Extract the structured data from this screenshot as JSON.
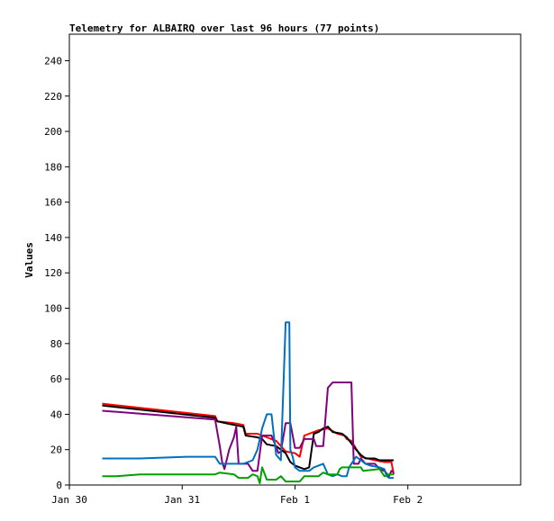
{
  "chart_data": {
    "type": "line",
    "title": "Telemetry for ALBAIRQ over last 96 hours (77 points)",
    "ylabel": "Values",
    "xlabel": "",
    "ylim": [
      0,
      255
    ],
    "xlim": [
      0,
      96
    ],
    "y_ticks": [
      0,
      20,
      40,
      60,
      80,
      100,
      120,
      140,
      160,
      180,
      200,
      220,
      240
    ],
    "x_ticks": [
      {
        "x": 0,
        "label": "Jan 30"
      },
      {
        "x": 24,
        "label": "Jan 31"
      },
      {
        "x": 48,
        "label": "Feb 1"
      },
      {
        "x": 72,
        "label": "Feb 2"
      }
    ],
    "grid": false,
    "legend": "none",
    "series": [
      {
        "color": "#ff0000",
        "points": [
          [
            7,
            46
          ],
          [
            31,
            39
          ],
          [
            31.5,
            36
          ],
          [
            35,
            35
          ],
          [
            37,
            34
          ],
          [
            37.5,
            29
          ],
          [
            40,
            29
          ],
          [
            42,
            27
          ],
          [
            44,
            25
          ],
          [
            46,
            19
          ],
          [
            48,
            18
          ],
          [
            49,
            16
          ],
          [
            50,
            28
          ],
          [
            52,
            30
          ],
          [
            53,
            31
          ],
          [
            55,
            32
          ],
          [
            57,
            29
          ],
          [
            58.5,
            28
          ],
          [
            59,
            26
          ],
          [
            60,
            25
          ],
          [
            62,
            16
          ],
          [
            65,
            14
          ],
          [
            67,
            13
          ],
          [
            68.5,
            13
          ],
          [
            69,
            6
          ]
        ]
      },
      {
        "color": "#000000",
        "points": [
          [
            7,
            45
          ],
          [
            31,
            38
          ],
          [
            31.5,
            36
          ],
          [
            35,
            34
          ],
          [
            37,
            33
          ],
          [
            37.5,
            28
          ],
          [
            40,
            27
          ],
          [
            41,
            26
          ],
          [
            42,
            23
          ],
          [
            44,
            22
          ],
          [
            45,
            20
          ],
          [
            46,
            18
          ],
          [
            47,
            13
          ],
          [
            48,
            11
          ],
          [
            49,
            10
          ],
          [
            50,
            9
          ],
          [
            51,
            10
          ],
          [
            52,
            29
          ],
          [
            53,
            30
          ],
          [
            54,
            32
          ],
          [
            55,
            33
          ],
          [
            56,
            30
          ],
          [
            58,
            29
          ],
          [
            59,
            27
          ],
          [
            61,
            20
          ],
          [
            62,
            17
          ],
          [
            63,
            15
          ],
          [
            65,
            15
          ],
          [
            66,
            14
          ],
          [
            68,
            14
          ],
          [
            69,
            14
          ]
        ]
      },
      {
        "color": "#800080",
        "points": [
          [
            7,
            42
          ],
          [
            31,
            37
          ],
          [
            32,
            22
          ],
          [
            32.5,
            13
          ],
          [
            33,
            9
          ],
          [
            34,
            20
          ],
          [
            35,
            27
          ],
          [
            35.5,
            33
          ],
          [
            36,
            12
          ],
          [
            38,
            12
          ],
          [
            39,
            8
          ],
          [
            40,
            8
          ],
          [
            41,
            28
          ],
          [
            43,
            28
          ],
          [
            44.5,
            18
          ],
          [
            45,
            19
          ],
          [
            46,
            35
          ],
          [
            47,
            35
          ],
          [
            48,
            21
          ],
          [
            49,
            21
          ],
          [
            50,
            26
          ],
          [
            52,
            26
          ],
          [
            52.5,
            22
          ],
          [
            54,
            22
          ],
          [
            55,
            55
          ],
          [
            56,
            58
          ],
          [
            60,
            58
          ],
          [
            60.5,
            12
          ],
          [
            61.5,
            12
          ],
          [
            62,
            15
          ],
          [
            63,
            12
          ],
          [
            65,
            12
          ],
          [
            66,
            9
          ],
          [
            67,
            8
          ],
          [
            68,
            5
          ],
          [
            68.5,
            8
          ],
          [
            69,
            7
          ]
        ]
      },
      {
        "color": "#0070c0",
        "points": [
          [
            7,
            15
          ],
          [
            15,
            15
          ],
          [
            25,
            16
          ],
          [
            31,
            16
          ],
          [
            32,
            12
          ],
          [
            35,
            12
          ],
          [
            37,
            12
          ],
          [
            39,
            14
          ],
          [
            40,
            20
          ],
          [
            41,
            32
          ],
          [
            42,
            40
          ],
          [
            43,
            40
          ],
          [
            43.5,
            28
          ],
          [
            44,
            17
          ],
          [
            45,
            14
          ],
          [
            46,
            92
          ],
          [
            46.8,
            92
          ],
          [
            47,
            20
          ],
          [
            47.5,
            16
          ],
          [
            48,
            10
          ],
          [
            49,
            8
          ],
          [
            51,
            8
          ],
          [
            52,
            10
          ],
          [
            54,
            12
          ],
          [
            55,
            6
          ],
          [
            56,
            5
          ],
          [
            57,
            6
          ],
          [
            58,
            5
          ],
          [
            59,
            5
          ],
          [
            59.5,
            10
          ],
          [
            60,
            12
          ],
          [
            61,
            16
          ],
          [
            62,
            14
          ],
          [
            63,
            12
          ],
          [
            64,
            11
          ],
          [
            66,
            10
          ],
          [
            67,
            9
          ],
          [
            67.5,
            5
          ],
          [
            68,
            4
          ],
          [
            69,
            4
          ]
        ]
      },
      {
        "color": "#00a000",
        "points": [
          [
            7,
            5
          ],
          [
            10,
            5
          ],
          [
            15,
            6
          ],
          [
            20,
            6
          ],
          [
            25,
            6
          ],
          [
            31,
            6
          ],
          [
            32,
            7
          ],
          [
            35,
            6
          ],
          [
            36,
            4
          ],
          [
            38,
            4
          ],
          [
            39,
            6
          ],
          [
            40,
            5
          ],
          [
            40.5,
            1
          ],
          [
            41,
            10
          ],
          [
            42,
            3
          ],
          [
            44,
            3
          ],
          [
            45,
            5
          ],
          [
            46,
            2
          ],
          [
            48,
            2
          ],
          [
            49,
            2
          ],
          [
            50,
            5
          ],
          [
            53,
            5
          ],
          [
            54,
            7
          ],
          [
            55,
            6
          ],
          [
            57,
            6
          ],
          [
            57.5,
            9
          ],
          [
            58,
            10
          ],
          [
            62,
            10
          ],
          [
            62.5,
            8
          ],
          [
            66,
            9
          ],
          [
            67,
            5
          ],
          [
            68,
            6
          ],
          [
            69,
            6
          ]
        ]
      }
    ]
  }
}
